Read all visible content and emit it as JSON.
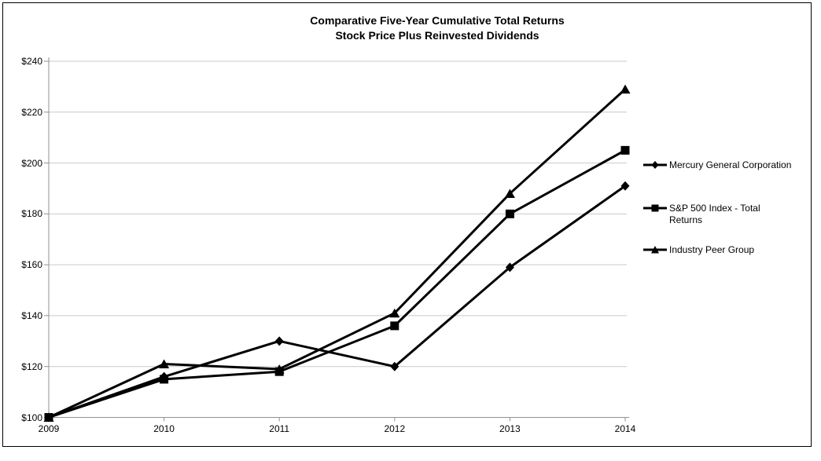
{
  "chart_data": {
    "type": "line",
    "title": "Comparative Five-Year Cumulative Total Returns",
    "subtitle": "Stock Price Plus Reinvested Dividends",
    "x_labels": [
      "2009",
      "2010",
      "2011",
      "2012",
      "2013",
      "2014"
    ],
    "y_ticks": [
      100,
      120,
      140,
      160,
      180,
      200,
      220,
      240
    ],
    "y_tick_labels": [
      "$100",
      "$120",
      "$140",
      "$160",
      "$180",
      "$200",
      "$220",
      "$240"
    ],
    "ylim": [
      100,
      240
    ],
    "grid": "horizontal",
    "legend_position": "right",
    "series": [
      {
        "name": "Mercury General Corporation",
        "marker": "diamond",
        "color": "#000000",
        "values": [
          100,
          116,
          130,
          120,
          159,
          191
        ]
      },
      {
        "name": "S&P 500 Index - Total Returns",
        "marker": "square",
        "color": "#000000",
        "values": [
          100,
          115,
          118,
          136,
          180,
          205
        ]
      },
      {
        "name": "Industry Peer Group",
        "marker": "triangle",
        "color": "#000000",
        "values": [
          100,
          121,
          119,
          141,
          188,
          229
        ]
      }
    ],
    "colors": {
      "axis": "#919191",
      "gridline": "#C9C9C9",
      "series_line": "#000000",
      "frame": "#000000",
      "background": "#FFFFFF"
    }
  }
}
